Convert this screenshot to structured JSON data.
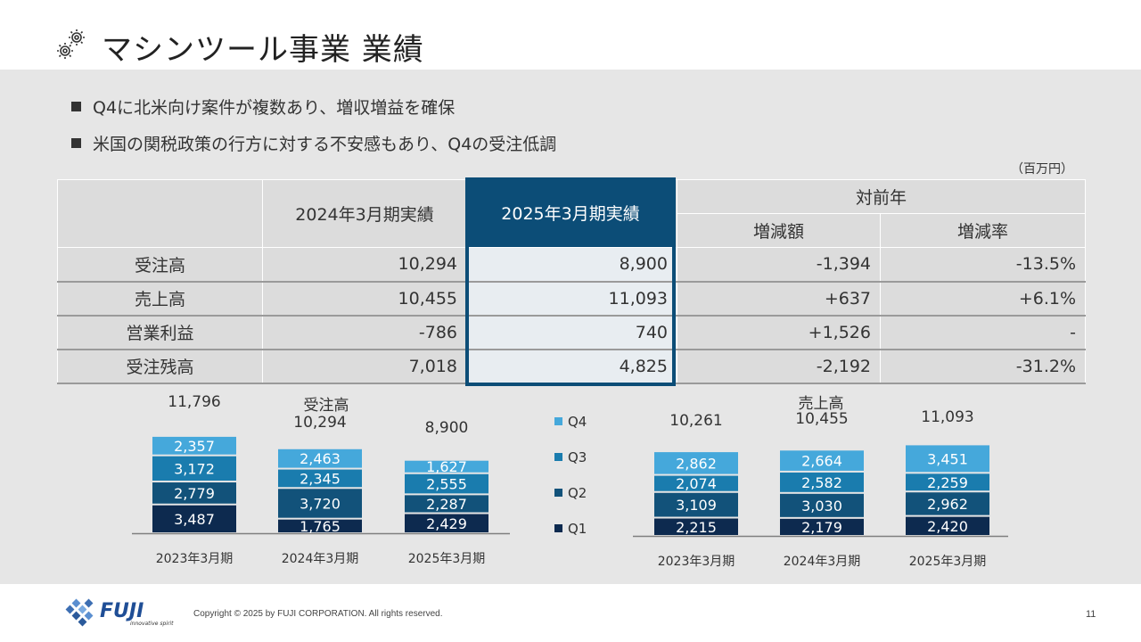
{
  "title": "マシンツール事業 業績",
  "bullets": [
    "Q4に北米向け案件が複数あり、増収増益を確保",
    "米国の関税政策の行方に対する不安感もあり、Q4の受注低調"
  ],
  "unit_label": "（百万円）",
  "table": {
    "header_prev": "2024年3月期実績",
    "header_curr": "2025年3月期実績",
    "header_yoy": "対前年",
    "header_diff": "増減額",
    "header_rate": "増減率",
    "rows": [
      {
        "label": "受注高",
        "prev": "10,294",
        "curr": "8,900",
        "diff": "-1,394",
        "rate": "-13.5%"
      },
      {
        "label": "売上高",
        "prev": "10,455",
        "curr": "11,093",
        "diff": "+637",
        "rate": "+6.1%"
      },
      {
        "label": "営業利益",
        "prev": "-786",
        "curr": "740",
        "diff": "+1,526",
        "rate": "-"
      },
      {
        "label": "受注残高",
        "prev": "7,018",
        "curr": "4,825",
        "diff": "-2,192",
        "rate": "-31.2%"
      }
    ]
  },
  "colors": {
    "Q1": "#0d2a4f",
    "Q2": "#12527a",
    "Q3": "#1a7cae",
    "Q4": "#45a8db",
    "highlight": "#0c4d77"
  },
  "chart_data": [
    {
      "type": "bar",
      "stacked": true,
      "title": "受注高",
      "categories": [
        "2023年3月期",
        "2024年3月期",
        "2025年3月期"
      ],
      "series": [
        {
          "name": "Q1",
          "values": [
            3487,
            1765,
            2429
          ]
        },
        {
          "name": "Q2",
          "values": [
            2779,
            3720,
            2287
          ]
        },
        {
          "name": "Q3",
          "values": [
            3172,
            2345,
            2555
          ]
        },
        {
          "name": "Q4",
          "values": [
            2357,
            2463,
            1627
          ]
        }
      ],
      "totals": [
        11796,
        10294,
        8900
      ]
    },
    {
      "type": "bar",
      "stacked": true,
      "title": "売上高",
      "categories": [
        "2023年3月期",
        "2024年3月期",
        "2025年3月期"
      ],
      "series": [
        {
          "name": "Q1",
          "values": [
            2215,
            2179,
            2420
          ]
        },
        {
          "name": "Q2",
          "values": [
            3109,
            3030,
            2962
          ]
        },
        {
          "name": "Q3",
          "values": [
            2074,
            2582,
            2259
          ]
        },
        {
          "name": "Q4",
          "values": [
            2862,
            2664,
            3451
          ]
        }
      ],
      "totals": [
        10261,
        10455,
        11093
      ]
    }
  ],
  "legend": [
    "Q4",
    "Q3",
    "Q2",
    "Q1"
  ],
  "footer": {
    "brand": "FUJI",
    "tagline": "innovative spirit",
    "copyright": "Copyright © 2025 by FUJI CORPORATION. All rights reserved.",
    "page": "11"
  }
}
